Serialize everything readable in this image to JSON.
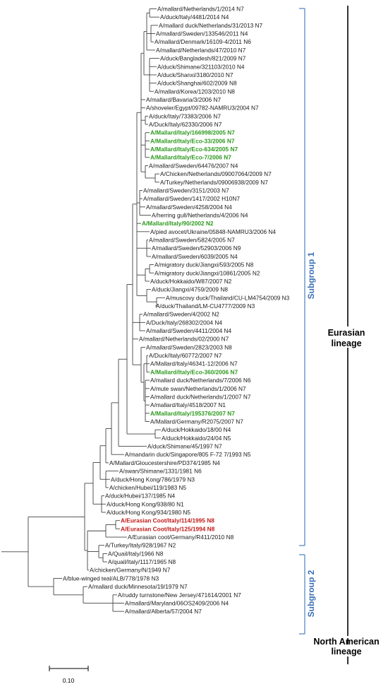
{
  "tree": {
    "leaves": [
      {
        "label": "A/mallard/Netherlands/1/2014  N7",
        "color": "black"
      },
      {
        "label": "A/duck/Italy/4481/2014  N4",
        "color": "black"
      },
      {
        "label": "A/mallard duck/Netherlands/31/2013  N7",
        "color": "black"
      },
      {
        "label": "A/mallard/Sweden/133546/2011  N4",
        "color": "black"
      },
      {
        "label": "A/mallard/Denmark/16109-4/2011  N6",
        "color": "black"
      },
      {
        "label": "A/mallard/Netherlands/47/2010  N7",
        "color": "black"
      },
      {
        "label": "A/duck/Bangladesh/821/2009  N7",
        "color": "black"
      },
      {
        "label": "A/duck/Shimane/321103/2010  N4",
        "color": "black"
      },
      {
        "label": "A/duck/Shanxi/3180/2010  N7",
        "color": "black"
      },
      {
        "label": "A/duck/Shanghai/602/2009  N8",
        "color": "black"
      },
      {
        "label": "A/mallard/Korea/1203/2010  N8",
        "color": "black"
      },
      {
        "label": "A/mallard/Bavaria/3/2006  N7",
        "color": "black"
      },
      {
        "label": "A/shoveler/Egypt/09782-NAMRU3/2004  N7",
        "color": "black"
      },
      {
        "label": "A/duck/Italy/73383/2006  N7",
        "color": "black"
      },
      {
        "label": "A/Duck/Italy/62330/2006  N7",
        "color": "black"
      },
      {
        "label": "A/Mallard/Italy/166998/2005  N7",
        "color": "green"
      },
      {
        "label": "A/Mallard/Italy/Eco-33/2006  N7",
        "color": "green"
      },
      {
        "label": "A/Mallard/Italy/Eco-634/2005  N7",
        "color": "green"
      },
      {
        "label": "A/Mallard/Italy/Eco-7/2006  N7",
        "color": "green"
      },
      {
        "label": "A/mallard/Sweden/64476/2007  N4",
        "color": "black"
      },
      {
        "label": "A/Chicken/Netherlands/09007064/2009  N7",
        "color": "black"
      },
      {
        "label": "A/Turkey/Netherlands/09006938/2009  N7",
        "color": "black"
      },
      {
        "label": "A/mallard/Sweden/3151/2003  N7",
        "color": "black"
      },
      {
        "label": "A/mallard/Sweden/1417/2002  H10N7",
        "color": "black"
      },
      {
        "label": "A/mallard/Sweden/4258/2004  N4",
        "color": "black"
      },
      {
        "label": "A/herring gull/Netherlands/4/2006  N4",
        "color": "black"
      },
      {
        "label": "A/Mallard/Italy/90/2002  N2",
        "color": "green"
      },
      {
        "label": "A/pied avocet/Ukraine/05848-NAMRU3/2006  N4",
        "color": "black"
      },
      {
        "label": "A/mallard/Sweden/5824/2005  N7",
        "color": "black"
      },
      {
        "label": "A/mallard/Sweden/52903/2006  N9",
        "color": "black"
      },
      {
        "label": "A/mallard/Sweden/6039/2005  N4",
        "color": "black"
      },
      {
        "label": "A/migratory duck/Jiangxi/593/2005  N8",
        "color": "black"
      },
      {
        "label": "A/migratory duck/Jiangxi/10861/2005  N2",
        "color": "black"
      },
      {
        "label": "A/duck/Hokkaido/W87/2007  N2",
        "color": "black"
      },
      {
        "label": "A/duck/Jiangxi/4759/2009  N8",
        "color": "black"
      },
      {
        "label": "A/muscovy duck/Thailand/CU-LM4754/2009  N3",
        "color": "black"
      },
      {
        "label": "A/duck/Thailand/LM-CU4777/2009  N3",
        "color": "black"
      },
      {
        "label": "A/mallard/Sweden/4/2002  N2",
        "color": "black"
      },
      {
        "label": "A/Duck/Italy/268302/2004  N4",
        "color": "black"
      },
      {
        "label": "A/mallard/Sweden/4411/2004  N4",
        "color": "black"
      },
      {
        "label": "A/mallard/Netherlands/02/2000  N7",
        "color": "black"
      },
      {
        "label": "A/mallard/Sweden/2823/2003  N8",
        "color": "black"
      },
      {
        "label": "A/Duck/Italy/60772/2007  N7",
        "color": "black"
      },
      {
        "label": "A/Mallard/Italy/46341-12/2006  N7",
        "color": "black"
      },
      {
        "label": "A/Mallard/Italy/Eco-360/2006  N7",
        "color": "green"
      },
      {
        "label": "A/mallard duck/Netherlands/7/2006  N6",
        "color": "black"
      },
      {
        "label": "A/mute swan/Netherlands/1/2006  N7",
        "color": "black"
      },
      {
        "label": "A/mallard duck/Netherlands/1/2007  N7",
        "color": "black"
      },
      {
        "label": "A/mallard/Italy/4518/2007  N1",
        "color": "black"
      },
      {
        "label": "A/Mallard/Italy/195376/2007  N7",
        "color": "green"
      },
      {
        "label": "A/Mallard/Germany/R2075/2007  N7",
        "color": "black"
      },
      {
        "label": "A/duck/Hokkaido/18/00  N4",
        "color": "black"
      },
      {
        "label": "A/duck/Hokkaido/24/04  N5",
        "color": "black"
      },
      {
        "label": "A/duck/Shimane/45/1997  N7",
        "color": "black"
      },
      {
        "label": "A/mandarin duck/Singapore/805 F-72 7/1993  N5",
        "color": "black"
      },
      {
        "label": "A/Mallard/Gloucestershire/PD374/1985  N4",
        "color": "black"
      },
      {
        "label": "A/swan/Shimane/1331/1981  N6",
        "color": "black"
      },
      {
        "label": "A/duck/Hong Kong/786/1979  N3",
        "color": "black"
      },
      {
        "label": "A/chicken/Hubei/119/1983  N5",
        "color": "black"
      },
      {
        "label": "A/duck/Hubei/137/1985  N4",
        "color": "black"
      },
      {
        "label": "A/duck/Hong Kong/938/80  N1",
        "color": "black"
      },
      {
        "label": "A/duck/Hong Kong/934/1980  N5",
        "color": "black"
      },
      {
        "label": "A/Eurasian Coot/Italy/114/1995  N8",
        "color": "red"
      },
      {
        "label": "A/Eurasian Coot/Italy/125/1994  N8",
        "color": "red"
      },
      {
        "label": "A/Eurasian coot/Germany/R411/2010  N8",
        "color": "black"
      },
      {
        "label": "A/Turkey/Italy/928/1967  N2",
        "color": "black"
      },
      {
        "label": "A/Quail/Italy/1966  N8",
        "color": "black"
      },
      {
        "label": "A/quail/Italy/1117/1965  N8",
        "color": "black"
      },
      {
        "label": "A/chicken/Germany/N/1949  N7",
        "color": "black"
      },
      {
        "label": "A/blue-winged teal/ALB/778/1978  N3",
        "color": "black"
      },
      {
        "label": "A/mallard duck/Minnesota/19/1979  N7",
        "color": "black"
      },
      {
        "label": "A/ruddy turnstone/New Jersey/471614/2001  N7",
        "color": "black"
      },
      {
        "label": "A/mallard/Maryland/06OS2409/2006  N4",
        "color": "black"
      },
      {
        "label": "A/mallard/Alberta/57/2004  N7",
        "color": "black"
      }
    ]
  },
  "subgroups": [
    {
      "label": "Subgroup 1"
    },
    {
      "label": "Subgroup 2"
    }
  ],
  "lineages": [
    {
      "line1": "Eurasian",
      "line2": "lineage"
    },
    {
      "line1": "North American",
      "line2": "lineage"
    }
  ],
  "scale_bar": {
    "label": "0.10"
  },
  "colors": {
    "green_highlight": "#2e9a1f",
    "red_highlight": "#c21a1a",
    "subgroup_blue": "#3b6fb6"
  }
}
